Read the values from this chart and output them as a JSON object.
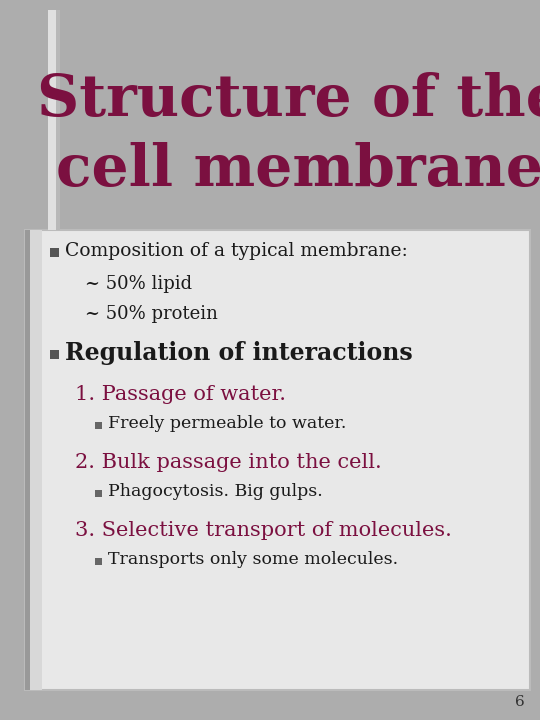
{
  "title_line1": "Structure of the",
  "title_line2": "cell membrane",
  "title_color": "#7B1040",
  "title_fontsize": 42,
  "bg_color": "#ADADAD",
  "content_bg": "#E8E8E8",
  "bullet_color": "#1a1a1a",
  "number_color": "#7B1040",
  "bullet1_text": "Composition of a typical membrane:",
  "bullet1_sub": [
    "~ 50% lipid",
    "~ 50% protein"
  ],
  "bullet2_text": "Regulation of interactions",
  "numbered_items": [
    {
      "num": "1.",
      "text": " Passage of water.",
      "sub": "Freely permeable to water."
    },
    {
      "num": "2.",
      "text": " Bulk passage into the cell.",
      "sub": "Phagocytosis. Big gulps."
    },
    {
      "num": "3.",
      "text": " Selective transport of molecules.",
      "sub": "Transports only some molecules."
    }
  ],
  "page_number": "6"
}
